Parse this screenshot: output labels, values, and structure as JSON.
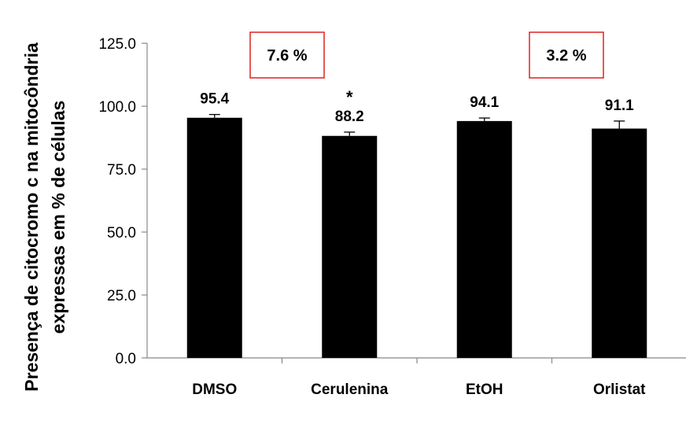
{
  "chart_data": {
    "type": "bar",
    "categories": [
      "DMSO",
      "Cerulenina",
      "EtOH",
      "Orlistat"
    ],
    "values": [
      95.4,
      88.2,
      94.1,
      91.1
    ],
    "errors": [
      1.3,
      1.5,
      1.2,
      3.0
    ],
    "data_labels": [
      "95.4",
      "88.2",
      "94.1",
      "91.1"
    ],
    "significance": [
      "",
      "*",
      "",
      ""
    ],
    "ylabel_line1": "Presença de citocromo c na mitocôndria",
    "ylabel_line2": "expressas em % de células",
    "ylim": [
      0,
      125
    ],
    "yticks": [
      0,
      25,
      50,
      75,
      100,
      125
    ],
    "ytick_labels": [
      "0.0",
      "25.0",
      "50.0",
      "75.0",
      "100.0",
      "125.0"
    ],
    "annotations": [
      "7.6 %",
      "3.2 %"
    ],
    "bar_color": "#000000",
    "annotation_border_color": "#e02020",
    "grid": false,
    "legend": "none"
  }
}
